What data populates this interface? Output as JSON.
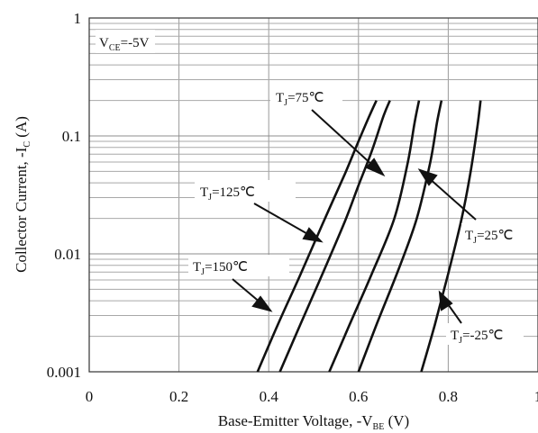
{
  "chart_data": {
    "type": "line",
    "title": "",
    "xlabel": {
      "main": "Base-Emitter Voltage, -V",
      "sub": "BE",
      "tail": " (V)"
    },
    "ylabel": {
      "main": "Collector Current, -I",
      "sub": "C",
      "tail": " (A)"
    },
    "xlim": [
      0,
      1
    ],
    "ylim": [
      0.001,
      1
    ],
    "yscale": "log",
    "grid": true,
    "x_ticks": [
      "0",
      "0.2",
      "0.4",
      "0.6",
      "0.8",
      "1"
    ],
    "y_ticks": [
      "1",
      "0.1",
      "0.01",
      "0.001"
    ],
    "condition": {
      "main": "V",
      "sub": "CE",
      "tail": "=-5V"
    },
    "series": [
      {
        "name": {
          "main": "T",
          "sub": "J",
          "tail": "=150℃"
        },
        "x": [
          0.375,
          0.42,
          0.47,
          0.52,
          0.57,
          0.6,
          0.625,
          0.64
        ],
        "y": [
          0.001,
          0.0025,
          0.0066,
          0.018,
          0.048,
          0.09,
          0.15,
          0.2
        ]
      },
      {
        "name": {
          "main": "T",
          "sub": "J",
          "tail": "=125℃"
        },
        "x": [
          0.425,
          0.47,
          0.52,
          0.57,
          0.6,
          0.63,
          0.655,
          0.67
        ],
        "y": [
          0.001,
          0.0025,
          0.0068,
          0.019,
          0.038,
          0.075,
          0.145,
          0.2
        ]
      },
      {
        "name": {
          "main": "T",
          "sub": "J",
          "tail": "=75℃"
        },
        "x": [
          0.535,
          0.58,
          0.63,
          0.68,
          0.71,
          0.725,
          0.735
        ],
        "y": [
          0.001,
          0.0025,
          0.0068,
          0.02,
          0.06,
          0.13,
          0.2
        ]
      },
      {
        "name": {
          "main": "T",
          "sub": "J",
          "tail": "=25℃"
        },
        "x": [
          0.6,
          0.64,
          0.69,
          0.73,
          0.76,
          0.775,
          0.785
        ],
        "y": [
          0.001,
          0.0025,
          0.0075,
          0.02,
          0.06,
          0.13,
          0.2
        ]
      },
      {
        "name": {
          "main": "T",
          "sub": "J",
          "tail": "=-25℃"
        },
        "x": [
          0.74,
          0.77,
          0.8,
          0.83,
          0.85,
          0.865,
          0.872
        ],
        "y": [
          0.001,
          0.0025,
          0.0068,
          0.02,
          0.05,
          0.12,
          0.2
        ]
      }
    ]
  }
}
